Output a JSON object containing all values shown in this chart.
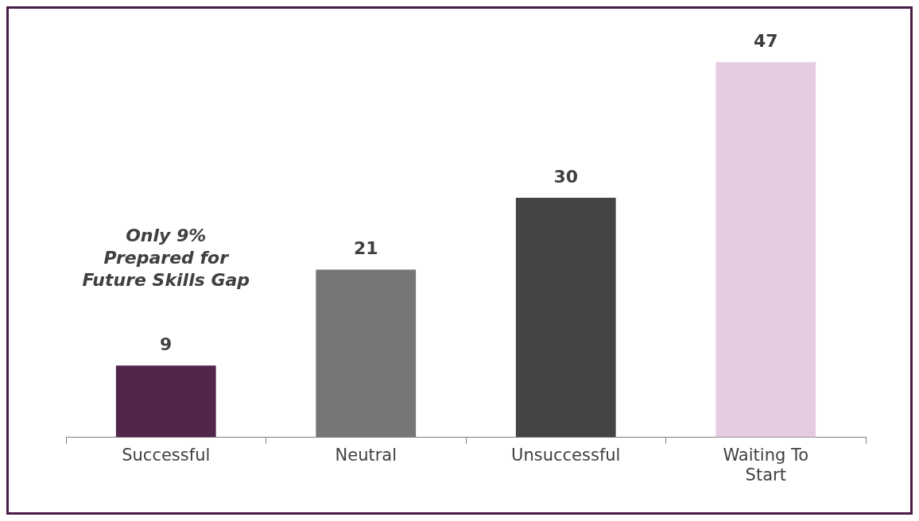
{
  "chart_data": {
    "type": "bar",
    "categories": [
      "Successful",
      "Neutral",
      "Unsuccessful",
      "Waiting To Start"
    ],
    "values": [
      9,
      21,
      30,
      47
    ],
    "colors": [
      "#52264b",
      "#767676",
      "#444444",
      "#e6cce3"
    ],
    "data_labels": true,
    "grid": false,
    "legend": false,
    "annotations": [
      "Only 9%\nPrepared for\nFuture Skills Gap"
    ]
  }
}
